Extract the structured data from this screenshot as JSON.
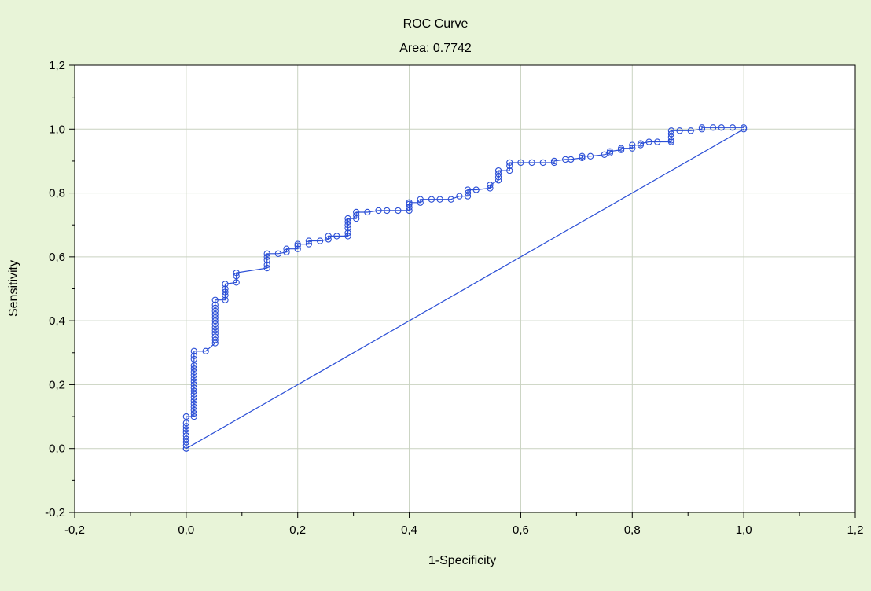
{
  "chart_data": {
    "type": "line",
    "title": "ROC Curve",
    "subtitle": "Area: 0.7742",
    "xlabel": "1-Specificity",
    "ylabel": "Sensitivity",
    "xlim": [
      -0.2,
      1.2
    ],
    "ylim": [
      -0.2,
      1.2
    ],
    "x_ticks": [
      -0.2,
      0.0,
      0.2,
      0.4,
      0.6,
      0.8,
      1.0,
      1.2
    ],
    "y_ticks": [
      -0.2,
      0.0,
      0.2,
      0.4,
      0.6,
      0.8,
      1.0,
      1.2
    ],
    "x_tick_labels": [
      "-0,2",
      "0,0",
      "0,2",
      "0,4",
      "0,6",
      "0,8",
      "1,0",
      "1,2"
    ],
    "y_tick_labels": [
      "-0,2",
      "0,0",
      "0,2",
      "0,4",
      "0,6",
      "0,8",
      "1,0",
      "1,2"
    ],
    "grid": true,
    "legend": "none",
    "colors": {
      "series": "#2b4fd6",
      "grid": "#c9d2c0",
      "axis": "#000000",
      "plot_bg": "#ffffff",
      "page_bg": "#e8f4d8"
    },
    "series": [
      {
        "x": [
          0.0,
          0.0,
          0.0,
          0.0,
          0.0,
          0.0,
          0.0,
          0.0,
          0.0,
          0.0,
          0.014,
          0.014,
          0.014,
          0.014,
          0.014,
          0.014,
          0.014,
          0.014,
          0.014,
          0.014,
          0.014,
          0.014,
          0.014,
          0.014,
          0.014,
          0.014,
          0.014,
          0.014,
          0.014,
          0.014,
          0.035,
          0.052,
          0.052,
          0.052,
          0.052,
          0.052,
          0.052,
          0.052,
          0.052,
          0.052,
          0.052,
          0.052,
          0.052,
          0.052,
          0.052,
          0.07,
          0.07,
          0.07,
          0.07,
          0.07,
          0.09,
          0.09,
          0.09,
          0.145,
          0.145,
          0.145,
          0.145,
          0.145,
          0.165,
          0.18,
          0.18,
          0.2,
          0.2,
          0.2,
          0.22,
          0.22,
          0.24,
          0.255,
          0.255,
          0.27,
          0.29,
          0.29,
          0.29,
          0.29,
          0.29,
          0.29,
          0.305,
          0.305,
          0.305,
          0.325,
          0.345,
          0.36,
          0.38,
          0.4,
          0.4,
          0.4,
          0.4,
          0.42,
          0.42,
          0.44,
          0.455,
          0.475,
          0.49,
          0.505,
          0.505,
          0.505,
          0.52,
          0.545,
          0.545,
          0.56,
          0.56,
          0.56,
          0.56,
          0.58,
          0.58,
          0.58,
          0.6,
          0.62,
          0.64,
          0.66,
          0.66,
          0.68,
          0.69,
          0.71,
          0.71,
          0.725,
          0.75,
          0.76,
          0.76,
          0.78,
          0.78,
          0.8,
          0.8,
          0.815,
          0.815,
          0.83,
          0.845,
          0.87,
          0.87,
          0.87,
          0.87,
          0.87,
          0.885,
          0.905,
          0.925,
          0.925,
          0.945,
          0.96,
          0.98,
          1.0
        ],
        "y": [
          0.0,
          0.01,
          0.02,
          0.03,
          0.04,
          0.05,
          0.06,
          0.07,
          0.08,
          0.1,
          0.1,
          0.11,
          0.12,
          0.13,
          0.14,
          0.15,
          0.16,
          0.17,
          0.18,
          0.19,
          0.2,
          0.21,
          0.22,
          0.23,
          0.24,
          0.25,
          0.26,
          0.28,
          0.29,
          0.305,
          0.305,
          0.33,
          0.34,
          0.35,
          0.36,
          0.37,
          0.38,
          0.39,
          0.4,
          0.41,
          0.42,
          0.43,
          0.44,
          0.45,
          0.465,
          0.465,
          0.48,
          0.49,
          0.5,
          0.515,
          0.52,
          0.54,
          0.55,
          0.565,
          0.575,
          0.59,
          0.6,
          0.61,
          0.61,
          0.615,
          0.625,
          0.625,
          0.635,
          0.64,
          0.64,
          0.65,
          0.65,
          0.655,
          0.665,
          0.665,
          0.665,
          0.675,
          0.69,
          0.7,
          0.71,
          0.72,
          0.72,
          0.73,
          0.74,
          0.74,
          0.745,
          0.745,
          0.745,
          0.745,
          0.755,
          0.765,
          0.77,
          0.77,
          0.78,
          0.78,
          0.78,
          0.78,
          0.79,
          0.79,
          0.8,
          0.81,
          0.81,
          0.815,
          0.825,
          0.84,
          0.85,
          0.86,
          0.87,
          0.87,
          0.885,
          0.895,
          0.895,
          0.895,
          0.895,
          0.895,
          0.9,
          0.905,
          0.905,
          0.91,
          0.915,
          0.915,
          0.92,
          0.925,
          0.93,
          0.935,
          0.94,
          0.94,
          0.95,
          0.95,
          0.955,
          0.96,
          0.96,
          0.96,
          0.965,
          0.975,
          0.985,
          0.995,
          0.995,
          0.995,
          1.0,
          1.005,
          1.005,
          1.005,
          1.005,
          1.005
        ]
      },
      {
        "x": [
          0.0,
          1.0
        ],
        "y": [
          0.0,
          1.0
        ]
      }
    ]
  }
}
